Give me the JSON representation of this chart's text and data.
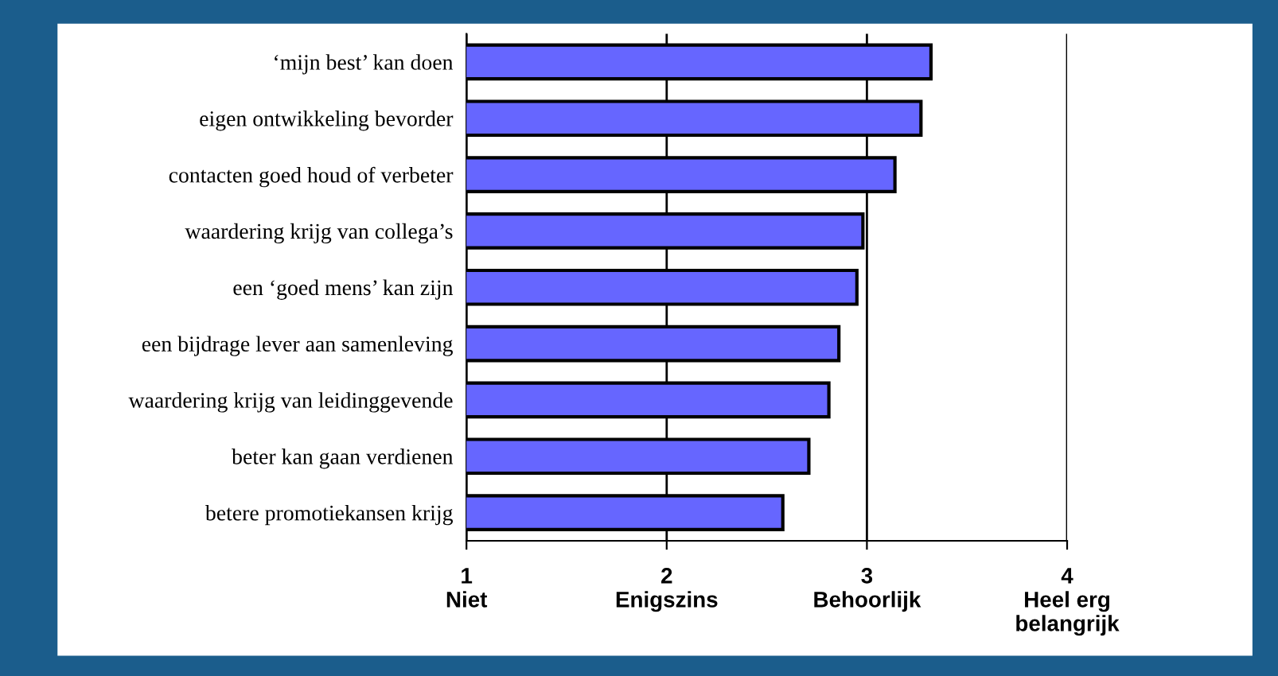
{
  "chart_data": {
    "type": "bar",
    "orientation": "horizontal",
    "categories": [
      "‘mijn best’ kan doen",
      "eigen ontwikkeling bevorder",
      "contacten goed houd of verbeter",
      "waardering krijg van collega’s",
      "een ‘goed mens’ kan zijn",
      "een bijdrage lever aan samenleving",
      "waardering krijg van leidinggevende",
      "beter kan gaan verdienen",
      "betere promotiekansen krijg"
    ],
    "values": [
      3.32,
      3.27,
      3.14,
      2.98,
      2.95,
      2.86,
      2.81,
      2.71,
      2.58
    ],
    "color": "#6666ff",
    "xlim": [
      1,
      4
    ],
    "xticks": [
      {
        "value": 1,
        "label": "1\nNiet"
      },
      {
        "value": 2,
        "label": "2\nEnigszins"
      },
      {
        "value": 3,
        "label": "3\nBehoorlijk"
      },
      {
        "value": 4,
        "label": "4\nHeel erg\nbelangrijk"
      }
    ],
    "grid": "x"
  }
}
